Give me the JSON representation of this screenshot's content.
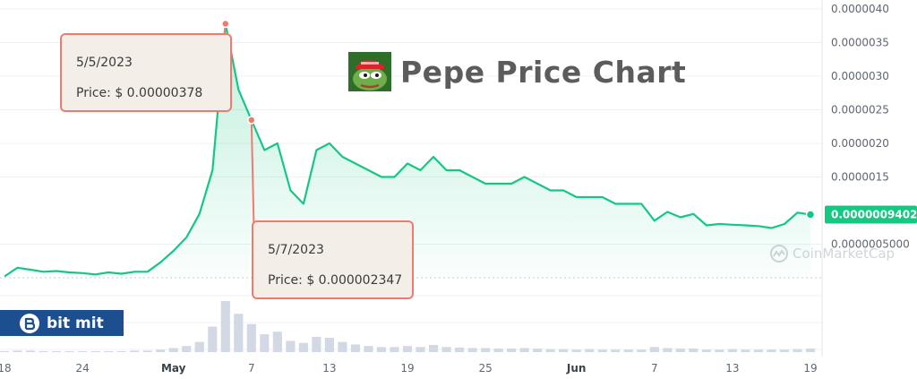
{
  "title": "Pepe Price Chart",
  "chart_data": {
    "type": "line",
    "title": "Pepe Price Chart",
    "xlabel": "",
    "ylabel": "",
    "x_axis": {
      "start_date": "2023-04-18",
      "end_date": "2023-06-19",
      "ticks": [
        {
          "date": "2023-04-18",
          "label": "18",
          "month": false
        },
        {
          "date": "2023-04-24",
          "label": "24",
          "month": false
        },
        {
          "date": "2023-05-01",
          "label": "May",
          "month": true
        },
        {
          "date": "2023-05-07",
          "label": "7",
          "month": false
        },
        {
          "date": "2023-05-13",
          "label": "13",
          "month": false
        },
        {
          "date": "2023-05-19",
          "label": "19",
          "month": false
        },
        {
          "date": "2023-05-25",
          "label": "25",
          "month": false
        },
        {
          "date": "2023-06-01",
          "label": "Jun",
          "month": true
        },
        {
          "date": "2023-06-07",
          "label": "7",
          "month": false
        },
        {
          "date": "2023-06-13",
          "label": "13",
          "month": false
        },
        {
          "date": "2023-06-19",
          "label": "19",
          "month": false
        }
      ]
    },
    "y_axis": {
      "ylim": [
        0,
        4e-06
      ],
      "ticks": [
        {
          "value": 5e-07,
          "label": "0.0000005000"
        },
        {
          "value": 1.5e-06,
          "label": "0.0000015"
        },
        {
          "value": 2e-06,
          "label": "0.0000020"
        },
        {
          "value": 2.5e-06,
          "label": "0.0000025"
        },
        {
          "value": 3e-06,
          "label": "0.0000030"
        },
        {
          "value": 3.5e-06,
          "label": "0.0000035"
        },
        {
          "value": 4e-06,
          "label": "0.0000040"
        }
      ]
    },
    "grid": true,
    "series": [
      {
        "color": "#16c784",
        "x": [
          "2023-04-18",
          "2023-04-19",
          "2023-04-20",
          "2023-04-21",
          "2023-04-22",
          "2023-04-23",
          "2023-04-24",
          "2023-04-25",
          "2023-04-26",
          "2023-04-27",
          "2023-04-28",
          "2023-04-29",
          "2023-04-30",
          "2023-05-01",
          "2023-05-02",
          "2023-05-03",
          "2023-05-04",
          "2023-05-05",
          "2023-05-06",
          "2023-05-07",
          "2023-05-08",
          "2023-05-09",
          "2023-05-10",
          "2023-05-11",
          "2023-05-12",
          "2023-05-13",
          "2023-05-14",
          "2023-05-15",
          "2023-05-16",
          "2023-05-17",
          "2023-05-18",
          "2023-05-19",
          "2023-05-20",
          "2023-05-21",
          "2023-05-22",
          "2023-05-23",
          "2023-05-24",
          "2023-05-25",
          "2023-05-26",
          "2023-05-27",
          "2023-05-28",
          "2023-05-29",
          "2023-05-30",
          "2023-05-31",
          "2023-06-01",
          "2023-06-02",
          "2023-06-03",
          "2023-06-04",
          "2023-06-05",
          "2023-06-06",
          "2023-06-07",
          "2023-06-08",
          "2023-06-09",
          "2023-06-10",
          "2023-06-11",
          "2023-06-12",
          "2023-06-13",
          "2023-06-14",
          "2023-06-15",
          "2023-06-16",
          "2023-06-17",
          "2023-06-18",
          "2023-06-19"
        ],
        "values": [
          2e-08,
          1.5e-07,
          1.2e-07,
          9e-08,
          1e-07,
          8e-08,
          7e-08,
          5e-08,
          8e-08,
          6e-08,
          9e-08,
          9e-08,
          2.3e-07,
          4e-07,
          6e-07,
          9.5e-07,
          1.6e-06,
          3.78e-06,
          2.8e-06,
          2.347e-06,
          1.9e-06,
          2e-06,
          1.3e-06,
          1.1e-06,
          1.9e-06,
          2e-06,
          1.8e-06,
          1.7e-06,
          1.6e-06,
          1.5e-06,
          1.5e-06,
          1.7e-06,
          1.6e-06,
          1.8e-06,
          1.6e-06,
          1.6e-06,
          1.5e-06,
          1.4e-06,
          1.4e-06,
          1.4e-06,
          1.5e-06,
          1.4e-06,
          1.3e-06,
          1.3e-06,
          1.2e-06,
          1.2e-06,
          1.2e-06,
          1.1e-06,
          1.1e-06,
          1.1e-06,
          8.5e-07,
          9.8e-07,
          9e-07,
          9.5e-07,
          7.8e-07,
          8e-07,
          7.9e-07,
          7.8e-07,
          7.7e-07,
          7.4e-07,
          8e-07,
          9.7e-07,
          9.402e-07
        ]
      }
    ],
    "volume": {
      "color": "#d3d9e4",
      "x": [
        "2023-04-18",
        "2023-04-19",
        "2023-04-20",
        "2023-04-21",
        "2023-04-22",
        "2023-04-23",
        "2023-04-24",
        "2023-04-25",
        "2023-04-26",
        "2023-04-27",
        "2023-04-28",
        "2023-04-29",
        "2023-04-30",
        "2023-05-01",
        "2023-05-02",
        "2023-05-03",
        "2023-05-04",
        "2023-05-05",
        "2023-05-06",
        "2023-05-07",
        "2023-05-08",
        "2023-05-09",
        "2023-05-10",
        "2023-05-11",
        "2023-05-12",
        "2023-05-13",
        "2023-05-14",
        "2023-05-15",
        "2023-05-16",
        "2023-05-17",
        "2023-05-18",
        "2023-05-19",
        "2023-05-20",
        "2023-05-21",
        "2023-05-22",
        "2023-05-23",
        "2023-05-24",
        "2023-05-25",
        "2023-05-26",
        "2023-05-27",
        "2023-05-28",
        "2023-05-29",
        "2023-05-30",
        "2023-05-31",
        "2023-06-01",
        "2023-06-02",
        "2023-06-03",
        "2023-06-04",
        "2023-06-05",
        "2023-06-06",
        "2023-06-07",
        "2023-06-08",
        "2023-06-09",
        "2023-06-10",
        "2023-06-11",
        "2023-06-12",
        "2023-06-13",
        "2023-06-14",
        "2023-06-15",
        "2023-06-16",
        "2023-06-17",
        "2023-06-18",
        "2023-06-19"
      ],
      "values": [
        0.02,
        0.03,
        0.03,
        0.02,
        0.02,
        0.02,
        0.02,
        0.02,
        0.02,
        0.02,
        0.03,
        0.03,
        0.05,
        0.08,
        0.12,
        0.2,
        0.5,
        1.0,
        0.75,
        0.55,
        0.35,
        0.4,
        0.22,
        0.18,
        0.3,
        0.28,
        0.2,
        0.15,
        0.12,
        0.1,
        0.1,
        0.12,
        0.1,
        0.14,
        0.1,
        0.09,
        0.08,
        0.08,
        0.07,
        0.07,
        0.08,
        0.07,
        0.06,
        0.06,
        0.05,
        0.06,
        0.05,
        0.05,
        0.05,
        0.05,
        0.1,
        0.08,
        0.07,
        0.07,
        0.05,
        0.05,
        0.06,
        0.05,
        0.05,
        0.05,
        0.05,
        0.06,
        0.07
      ]
    },
    "current_price": {
      "value": 9.402e-07,
      "label": "0.0000009402"
    },
    "annotations": [
      {
        "date": "2023-05-05",
        "value": 3.78e-06,
        "date_label": "5/5/2023",
        "price_label": "Price: $ 0.00000378"
      },
      {
        "date": "2023-05-07",
        "value": 2.347e-06,
        "date_label": "5/7/2023",
        "price_label": "Price: $ 0.000002347"
      }
    ]
  },
  "watermark": {
    "brand": "CoinMarketCap"
  },
  "badge": {
    "brand": "bit mit"
  }
}
